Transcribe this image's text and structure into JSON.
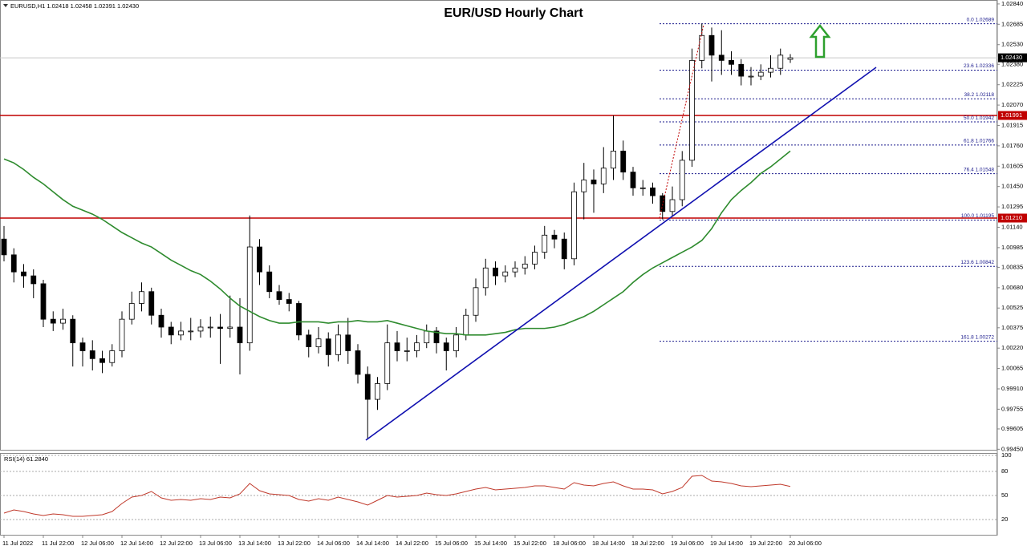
{
  "chart_data": {
    "type": "candlestick",
    "title": "EUR/USD Hourly Chart",
    "header": "EURUSD,H1  1.02418 1.02458 1.02391 1.02430",
    "categories": [
      "11 Jul 2022",
      null,
      null,
      null,
      "11 Jul 22:00",
      null,
      null,
      null,
      "12 Jul 06:00",
      null,
      null,
      null,
      "12 Jul 14:00",
      null,
      null,
      null,
      "12 Jul 22:00",
      null,
      null,
      null,
      "13 Jul 06:00",
      null,
      null,
      null,
      "13 Jul 14:00",
      null,
      null,
      null,
      "13 Jul 22:00",
      null,
      null,
      null,
      "14 Jul 06:00",
      null,
      null,
      null,
      "14 Jul 14:00",
      null,
      null,
      null,
      "14 Jul 22:00",
      null,
      null,
      null,
      "15 Jul 06:00",
      null,
      null,
      null,
      "15 Jul 14:00",
      null,
      null,
      null,
      "15 Jul 22:00",
      null,
      null,
      null,
      "18 Jul 06:00",
      null,
      null,
      null,
      "18 Jul 14:00",
      null,
      null,
      null,
      "18 Jul 22:00",
      null,
      null,
      null,
      "19 Jul 06:00",
      null,
      null,
      null,
      "19 Jul 14:00",
      null,
      null,
      null,
      "19 Jul 22:00",
      null,
      null,
      null,
      "20 Jul 06:00"
    ],
    "ohlc": [
      [
        1.0105,
        1.0115,
        1.0088,
        1.0093
      ],
      [
        1.0093,
        1.0098,
        1.0072,
        1.008
      ],
      [
        1.008,
        1.0086,
        1.0068,
        1.0077
      ],
      [
        1.0077,
        1.0082,
        1.006,
        1.0071
      ],
      [
        1.0071,
        1.0074,
        1.0038,
        1.0044
      ],
      [
        1.0044,
        1.005,
        1.0035,
        1.0041
      ],
      [
        1.0041,
        1.0052,
        1.0036,
        1.0044
      ],
      [
        1.0044,
        1.0047,
        1.0008,
        1.0026
      ],
      [
        1.0026,
        1.003,
        1.0008,
        1.002
      ],
      [
        1.002,
        1.0028,
        1.0005,
        1.0014
      ],
      [
        1.0014,
        1.002,
        1.0003,
        1.0011
      ],
      [
        1.0011,
        1.0025,
        1.0008,
        1.002
      ],
      [
        1.002,
        1.005,
        1.0015,
        1.0044
      ],
      [
        1.0044,
        1.0065,
        1.004,
        1.0056
      ],
      [
        1.0056,
        1.0072,
        1.005,
        1.0065
      ],
      [
        1.0065,
        1.0068,
        1.004,
        1.0047
      ],
      [
        1.0047,
        1.0052,
        1.003,
        1.0038
      ],
      [
        1.0038,
        1.0042,
        1.0025,
        1.0032
      ],
      [
        1.0032,
        1.0042,
        1.0028,
        1.0035
      ],
      [
        1.0035,
        1.0045,
        1.0028,
        1.0035
      ],
      [
        1.0035,
        1.0044,
        1.003,
        1.0038
      ],
      [
        1.0038,
        1.0046,
        1.003,
        1.0038
      ],
      [
        1.0038,
        1.0048,
        1.001,
        1.0037
      ],
      [
        1.0037,
        1.0062,
        1.003,
        1.0038
      ],
      [
        1.0038,
        1.006,
        1.0002,
        1.0026
      ],
      [
        1.0026,
        1.0123,
        1.002,
        1.0099
      ],
      [
        1.0099,
        1.0105,
        1.007,
        1.008
      ],
      [
        1.008,
        1.0085,
        1.006,
        1.0065
      ],
      [
        1.0065,
        1.007,
        1.0055,
        1.0059
      ],
      [
        1.0059,
        1.0064,
        1.005,
        1.0056
      ],
      [
        1.0056,
        1.0058,
        1.0028,
        1.0032
      ],
      [
        1.0032,
        1.0036,
        1.0015,
        1.0023
      ],
      [
        1.0023,
        1.0038,
        1.0018,
        1.0029
      ],
      [
        1.0029,
        1.0034,
        1.0008,
        1.0017
      ],
      [
        1.0017,
        1.004,
        1.0012,
        1.0032
      ],
      [
        1.0032,
        1.0045,
        1.001,
        1.002
      ],
      [
        1.002,
        1.0025,
        0.9995,
        1.0002
      ],
      [
        1.0002,
        1.0008,
        0.9953,
        0.9983
      ],
      [
        0.9983,
        1.0,
        0.9975,
        0.9995
      ],
      [
        0.9995,
        1.004,
        0.999,
        1.0026
      ],
      [
        1.0026,
        1.0035,
        1.0012,
        1.002
      ],
      [
        1.002,
        1.003,
        1.0012,
        1.002
      ],
      [
        1.002,
        1.0032,
        1.0015,
        1.0026
      ],
      [
        1.0026,
        1.004,
        1.0022,
        1.0035
      ],
      [
        1.0035,
        1.0038,
        1.0018,
        1.0026
      ],
      [
        1.0026,
        1.003,
        1.0005,
        1.002
      ],
      [
        1.002,
        1.0038,
        1.0015,
        1.0032
      ],
      [
        1.0032,
        1.0052,
        1.0028,
        1.0047
      ],
      [
        1.0047,
        1.0075,
        1.0042,
        1.0068
      ],
      [
        1.0068,
        1.009,
        1.0062,
        1.0083
      ],
      [
        1.0083,
        1.0088,
        1.007,
        1.0077
      ],
      [
        1.0077,
        1.0085,
        1.0072,
        1.008
      ],
      [
        1.008,
        1.0088,
        1.0076,
        1.0083
      ],
      [
        1.0083,
        1.0092,
        1.0078,
        1.0086
      ],
      [
        1.0086,
        1.01,
        1.0082,
        1.0095
      ],
      [
        1.0095,
        1.0115,
        1.009,
        1.0108
      ],
      [
        1.0108,
        1.0112,
        1.0098,
        1.0105
      ],
      [
        1.0105,
        1.011,
        1.0082,
        1.009
      ],
      [
        1.009,
        1.0148,
        1.0085,
        1.0141
      ],
      [
        1.0141,
        1.0163,
        1.012,
        1.015
      ],
      [
        1.015,
        1.0158,
        1.0125,
        1.0147
      ],
      [
        1.0147,
        1.0175,
        1.014,
        1.0159
      ],
      [
        1.0159,
        1.0199,
        1.015,
        1.0172
      ],
      [
        1.0172,
        1.018,
        1.015,
        1.0156
      ],
      [
        1.0156,
        1.016,
        1.0138,
        1.0144
      ],
      [
        1.0144,
        1.015,
        1.0138,
        1.0144
      ],
      [
        1.0144,
        1.0148,
        1.0132,
        1.0138
      ],
      [
        1.0138,
        1.014,
        1.012,
        1.0126
      ],
      [
        1.0126,
        1.0145,
        1.0122,
        1.0135
      ],
      [
        1.0135,
        1.0172,
        1.013,
        1.0165
      ],
      [
        1.0165,
        1.025,
        1.016,
        1.0241
      ],
      [
        1.0241,
        1.0269,
        1.0235,
        1.026
      ],
      [
        1.026,
        1.0266,
        1.0225,
        1.0245
      ],
      [
        1.0245,
        1.0264,
        1.023,
        1.0241
      ],
      [
        1.0241,
        1.0248,
        1.023,
        1.0238
      ],
      [
        1.0238,
        1.0242,
        1.0222,
        1.0229
      ],
      [
        1.0229,
        1.0236,
        1.0222,
        1.0229
      ],
      [
        1.0229,
        1.0238,
        1.0226,
        1.0232
      ],
      [
        1.0232,
        1.0245,
        1.0228,
        1.0235
      ],
      [
        1.0235,
        1.025,
        1.023,
        1.0245
      ],
      [
        1.02418,
        1.02458,
        1.02391,
        1.0243
      ]
    ],
    "color_up": "#ffffff",
    "color_down": "#000000",
    "ylim": [
      0.9944,
      1.0287
    ],
    "yticks": [
      {
        "value": 1.0284,
        "label": "1.02840"
      },
      1.02685,
      {
        "value": 1.0253,
        "label": "1.02530"
      },
      {
        "value": 1.0238,
        "label": "1.02380"
      },
      1.02225,
      {
        "value": 1.0207,
        "label": "1.02070"
      },
      1.01915,
      {
        "value": 1.0176,
        "label": "1.01760"
      },
      1.01605,
      {
        "value": 1.0145,
        "label": "1.01450"
      },
      1.01295,
      {
        "value": 1.0114,
        "label": "1.01140"
      },
      1.00985,
      1.00835,
      {
        "value": 1.0068,
        "label": "1.00680"
      },
      1.00525,
      1.00375,
      {
        "value": 1.0022,
        "label": "1.00220"
      },
      1.00065,
      {
        "value": 0.9991,
        "label": "0.99910"
      },
      0.99755,
      0.99605,
      {
        "value": 0.9945,
        "label": "0.99450"
      }
    ],
    "ma": {
      "color": "#2e8b2e",
      "values": [
        1.0166,
        1.0163,
        1.0158,
        1.0152,
        1.0147,
        1.0141,
        1.0135,
        1.013,
        1.0127,
        1.0124,
        1.012,
        1.0115,
        1.011,
        1.0106,
        1.0102,
        1.0099,
        1.0094,
        1.0089,
        1.0085,
        1.0081,
        1.0078,
        1.0073,
        1.0067,
        1.006,
        1.0054,
        1.005,
        1.0046,
        1.0043,
        1.0041,
        1.0041,
        1.0042,
        1.0042,
        1.0042,
        1.0041,
        1.0042,
        1.0042,
        1.0043,
        1.0042,
        1.0042,
        1.0043,
        1.0041,
        1.0039,
        1.0037,
        1.0035,
        1.0034,
        1.0033,
        1.0033,
        1.0032,
        1.0032,
        1.0032,
        1.0033,
        1.0034,
        1.0036,
        1.0037,
        1.0037,
        1.0037,
        1.0038,
        1.004,
        1.0043,
        1.0046,
        1.005,
        1.0055,
        1.006,
        1.0065,
        1.0072,
        1.0078,
        1.0083,
        1.0087,
        1.0091,
        1.0095,
        1.0099,
        1.0104,
        1.0113,
        1.0125,
        1.0135,
        1.0142,
        1.0148,
        1.0155,
        1.016,
        1.0166,
        1.0172
      ]
    },
    "levels": [
      {
        "value": 1.0243,
        "label": "1.02430",
        "line_color": "#c8c8c8",
        "box_color": "#000000"
      },
      {
        "value": 1.01991,
        "line_color": "#c00000",
        "box_color": "#c00000"
      },
      {
        "value": 1.0121,
        "label": "1.01210",
        "line_color": "#c00000",
        "box_color": "#c00000"
      }
    ],
    "fib": {
      "color": "#1a1a8c",
      "levels": [
        {
          "value": 1.02689,
          "label": "0.0 1.02689"
        },
        {
          "value": 1.02336,
          "label": "23.6 1.02336"
        },
        {
          "value": 1.02118,
          "label": "38.2 1.02118"
        },
        {
          "value": 1.01942,
          "label": "50.0 1.01942"
        },
        {
          "value": 1.01766,
          "label": "61.8 1.01766"
        },
        {
          "value": 1.01548,
          "label": "76.4 1.01548"
        },
        {
          "value": 1.01195,
          "label": "100.0 1.01195"
        },
        {
          "value": 1.00842,
          "label": "123.6 1.00842"
        },
        {
          "value": 1.00272,
          "label": "161.8 1.00272"
        }
      ]
    },
    "rsi": {
      "label": "RSI(14) 61.2840",
      "color": "#c0392b",
      "ylim": [
        0,
        100
      ],
      "yticks": [
        100,
        80,
        50,
        20
      ],
      "values": [
        28,
        32,
        30,
        27,
        25,
        27,
        26,
        24,
        24,
        25,
        26,
        30,
        40,
        48,
        50,
        55,
        47,
        44,
        45,
        44,
        46,
        45,
        48,
        47,
        52,
        65,
        56,
        52,
        51,
        50,
        45,
        43,
        46,
        44,
        48,
        45,
        42,
        38,
        44,
        50,
        48,
        49,
        50,
        53,
        51,
        50,
        52,
        55,
        58,
        60,
        57,
        58,
        59,
        60,
        62,
        62,
        60,
        58,
        66,
        63,
        62,
        65,
        67,
        62,
        58,
        58,
        57,
        52,
        55,
        60,
        74,
        75,
        68,
        67,
        65,
        62,
        61,
        62,
        63,
        64,
        61.284
      ]
    }
  }
}
